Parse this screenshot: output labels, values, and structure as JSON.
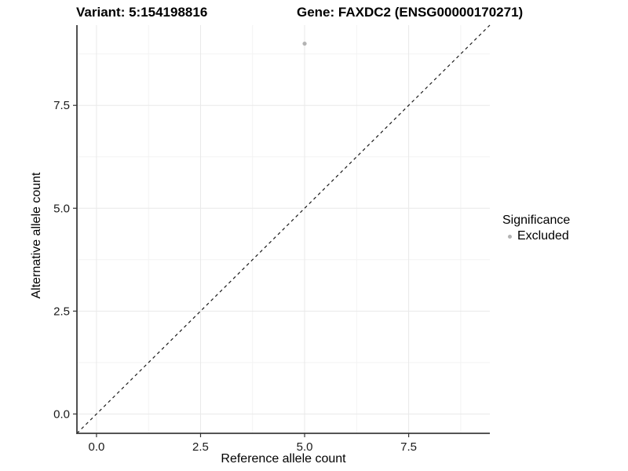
{
  "titles": {
    "variant": "Variant: 5:154198816",
    "gene": "Gene: FAXDC2 (ENSG00000170271)"
  },
  "axes": {
    "x_label": "Reference allele count",
    "y_label": "Alternative allele count"
  },
  "legend": {
    "title": "Significance",
    "items": [
      {
        "label": "Excluded",
        "color": "#b3b3b3"
      }
    ]
  },
  "colors": {
    "background": "#ffffff",
    "point": "#b3b3b3",
    "axis_line": "#3c3c3c",
    "tick_mark": "#333333",
    "tick_text": "#1a1a1a",
    "grid_major": "#e9e9e9",
    "grid_minor": "#f3f3f3",
    "identity_line": "#1a1a1a"
  },
  "chart_data": {
    "type": "scatter",
    "title": "Variant: 5:154198816 — Gene: FAXDC2 (ENSG00000170271)",
    "xlabel": "Reference allele count",
    "ylabel": "Alternative allele count",
    "xlim": [
      -0.47,
      9.45
    ],
    "ylim": [
      -0.47,
      9.45
    ],
    "x_ticks": {
      "values": [
        0,
        2.5,
        5,
        7.5
      ],
      "labels": [
        "0.0",
        "2.5",
        "5.0",
        "7.5"
      ]
    },
    "y_ticks": {
      "values": [
        0,
        2.5,
        5,
        7.5
      ],
      "labels": [
        "0.0",
        "2.5",
        "5.0",
        "7.5"
      ]
    },
    "x_minor_ticks": [
      1.25,
      3.75,
      6.25,
      8.75
    ],
    "y_minor_ticks": [
      1.25,
      3.75,
      6.25,
      8.75
    ],
    "grid": true,
    "legend_position": "right",
    "legend_title": "Significance",
    "series": [
      {
        "name": "Excluded",
        "color": "#b3b3b3",
        "points": [
          {
            "x": 5,
            "y": 9
          }
        ]
      }
    ],
    "reference_line": {
      "type": "identity",
      "style": "dashed",
      "from": [
        -0.47,
        -0.47
      ],
      "to": [
        9.45,
        9.45
      ]
    }
  }
}
